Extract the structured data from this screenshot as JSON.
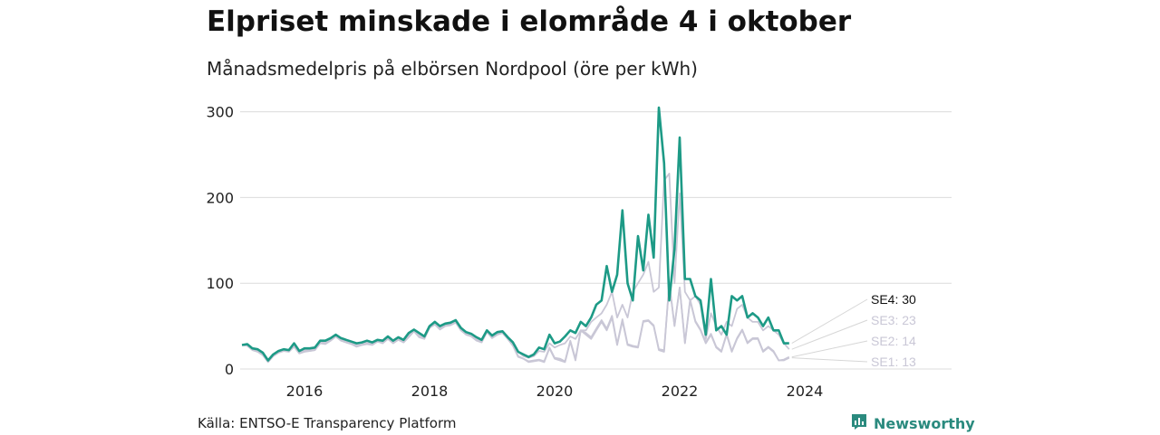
{
  "title": "Elpriset minskade i elområde 4 i oktober",
  "subtitle": "Månadsmedelpris på elbörsen Nordpool (öre per kWh)",
  "source": "Källa: ENTSO-E Transparency Platform",
  "brand": {
    "name": "Newsworthy",
    "icon": "newsworthy-chart-logo-icon",
    "color": "#2a8a7e"
  },
  "chart_data": {
    "type": "line",
    "ylim": [
      0,
      310
    ],
    "yticks": [
      0,
      100,
      200,
      300
    ],
    "xticks": [
      "2016",
      "2018",
      "2020",
      "2022",
      "2024"
    ],
    "grid": true,
    "x_start": "2015-01",
    "x_end": "2024-10",
    "series": [
      {
        "name": "SE1",
        "end_label": "SE1: 13",
        "color": "#c9c7d6",
        "values": [
          28,
          27,
          22,
          20,
          16,
          8,
          15,
          19,
          21,
          20,
          26,
          18,
          20,
          21,
          22,
          30,
          29,
          33,
          38,
          33,
          31,
          29,
          26,
          28,
          29,
          28,
          32,
          30,
          35,
          30,
          34,
          31,
          37,
          44,
          37,
          35,
          48,
          52,
          46,
          50,
          51,
          54,
          45,
          40,
          38,
          33,
          31,
          43,
          36,
          40,
          42,
          35,
          27,
          14,
          12,
          8,
          9,
          10,
          8,
          24,
          12,
          10,
          8,
          32,
          10,
          45,
          40,
          35,
          45,
          55,
          45,
          60,
          28,
          56,
          28,
          26,
          25,
          55,
          56,
          50,
          22,
          20,
          100,
          50,
          95,
          30,
          80,
          55,
          45,
          30,
          40,
          25,
          20,
          40,
          20,
          35,
          45,
          30,
          35,
          35,
          20,
          25,
          20,
          10,
          10,
          13
        ]
      },
      {
        "name": "SE2",
        "end_label": "SE2: 14",
        "color": "#c9c7d6",
        "values": [
          28,
          27,
          23,
          21,
          17,
          9,
          15,
          19,
          22,
          21,
          26,
          19,
          21,
          21,
          22,
          30,
          30,
          33,
          38,
          33,
          31,
          29,
          27,
          28,
          30,
          29,
          32,
          31,
          36,
          31,
          35,
          31,
          38,
          44,
          38,
          36,
          48,
          52,
          47,
          51,
          52,
          55,
          46,
          41,
          39,
          34,
          32,
          43,
          37,
          41,
          42,
          35,
          28,
          15,
          12,
          9,
          10,
          11,
          9,
          25,
          13,
          12,
          9,
          33,
          12,
          45,
          42,
          37,
          47,
          57,
          47,
          62,
          29,
          58,
          29,
          27,
          26,
          56,
          57,
          51,
          23,
          22,
          100,
          51,
          95,
          31,
          81,
          56,
          46,
          31,
          41,
          26,
          21,
          41,
          21,
          36,
          46,
          31,
          36,
          36,
          21,
          26,
          21,
          10,
          11,
          14
        ]
      },
      {
        "name": "SE3",
        "end_label": "SE3: 23",
        "color": "#c9c7d6",
        "values": [
          28,
          28,
          23,
          21,
          17,
          9,
          16,
          20,
          22,
          21,
          27,
          20,
          22,
          22,
          23,
          31,
          32,
          34,
          38,
          34,
          32,
          30,
          29,
          30,
          32,
          29,
          33,
          32,
          37,
          32,
          36,
          33,
          40,
          45,
          40,
          38,
          49,
          53,
          48,
          52,
          53,
          56,
          47,
          42,
          40,
          36,
          33,
          44,
          38,
          42,
          43,
          36,
          30,
          20,
          15,
          13,
          15,
          21,
          20,
          30,
          25,
          28,
          30,
          38,
          35,
          45,
          45,
          55,
          60,
          65,
          75,
          90,
          60,
          75,
          60,
          90,
          100,
          110,
          125,
          90,
          95,
          220,
          228,
          100,
          205,
          90,
          80,
          85,
          75,
          35,
          65,
          50,
          40,
          55,
          50,
          70,
          75,
          60,
          55,
          55,
          45,
          50,
          45,
          40,
          30,
          23
        ]
      },
      {
        "name": "SE4",
        "end_label": "SE4: 30",
        "color": "#1d9a86",
        "values": [
          28,
          29,
          24,
          23,
          19,
          10,
          17,
          21,
          23,
          22,
          30,
          21,
          24,
          24,
          25,
          33,
          33,
          36,
          40,
          36,
          34,
          32,
          30,
          31,
          33,
          31,
          34,
          33,
          38,
          33,
          37,
          34,
          42,
          46,
          42,
          38,
          50,
          55,
          50,
          53,
          54,
          57,
          48,
          43,
          41,
          37,
          34,
          45,
          39,
          43,
          44,
          37,
          31,
          20,
          17,
          14,
          17,
          25,
          23,
          40,
          30,
          32,
          38,
          45,
          42,
          55,
          50,
          60,
          75,
          80,
          120,
          90,
          110,
          185,
          100,
          80,
          155,
          115,
          180,
          130,
          305,
          240,
          80,
          140,
          270,
          105,
          105,
          85,
          80,
          40,
          105,
          45,
          50,
          40,
          85,
          80,
          85,
          60,
          65,
          60,
          50,
          60,
          45,
          45,
          30,
          30
        ]
      }
    ]
  }
}
